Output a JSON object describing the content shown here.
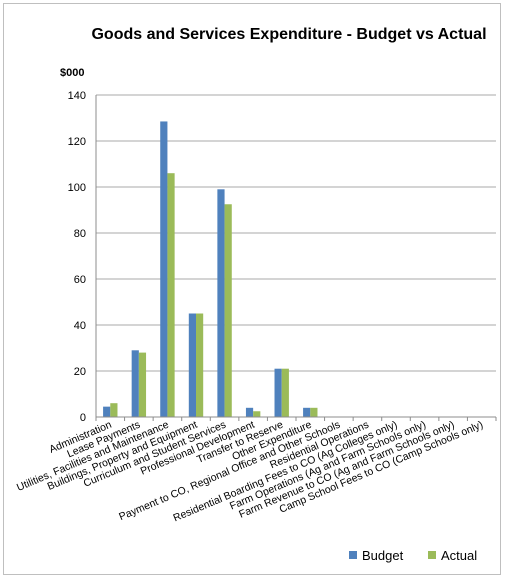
{
  "chart_data": {
    "type": "bar",
    "title": "Goods and Services Expenditure - Budget vs Actual",
    "unit_label": "$000",
    "ylim": [
      0,
      140
    ],
    "y_ticks": [
      0,
      20,
      40,
      60,
      80,
      100,
      120,
      140
    ],
    "grid": true,
    "legend_position": "bottom-right",
    "categories": [
      "Administration",
      "Lease Payments",
      "Utilities, Facilities and Maintenance",
      "Buildings, Property and Equipment",
      "Curriculum and Student Services",
      "Professional Development",
      "Transfer to Reserve",
      "Other Expenditure",
      "Payment to CO, Regional Office and Other Schools",
      "Residential Operations",
      "Residential Boarding Fees to CO (Ag Colleges only)",
      "Farm Operations (Ag and Farm Schools only)",
      "Farm Revenue to CO (Ag and Farm Schools only)",
      "Camp School Fees to CO (Camp Schools only)"
    ],
    "series": [
      {
        "name": "Budget",
        "color": "#4f81bd",
        "values": [
          4.5,
          29,
          128.5,
          45,
          99,
          4,
          21,
          4,
          0,
          0,
          0,
          0,
          0,
          0
        ]
      },
      {
        "name": "Actual",
        "color": "#9bbb59",
        "values": [
          6,
          28,
          106,
          45,
          92.5,
          2.5,
          21,
          4,
          0,
          0,
          0,
          0,
          0,
          0
        ]
      }
    ]
  }
}
